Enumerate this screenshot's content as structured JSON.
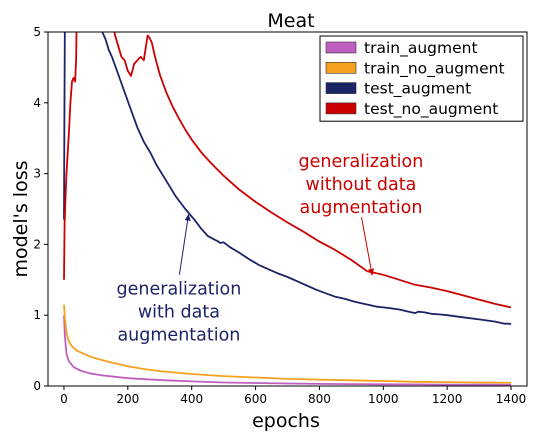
{
  "chart_data": {
    "type": "line",
    "title": "Meat",
    "xlabel": "epochs",
    "ylabel": "model's loss",
    "xlim": [
      -50,
      1450
    ],
    "ylim": [
      0,
      5
    ],
    "xticks": [
      0,
      200,
      400,
      600,
      800,
      1000,
      1200,
      1400
    ],
    "yticks": [
      0,
      1,
      2,
      3,
      4,
      5
    ],
    "grid": false,
    "legend_position": "top-right",
    "series": [
      {
        "name": "train_augment",
        "color": "#bf5fbf",
        "points": [
          [
            0,
            1.0
          ],
          [
            3,
            0.7
          ],
          [
            8,
            0.45
          ],
          [
            15,
            0.35
          ],
          [
            30,
            0.27
          ],
          [
            50,
            0.22
          ],
          [
            80,
            0.18
          ],
          [
            120,
            0.15
          ],
          [
            160,
            0.13
          ],
          [
            200,
            0.11
          ],
          [
            260,
            0.095
          ],
          [
            320,
            0.08
          ],
          [
            400,
            0.065
          ],
          [
            500,
            0.05
          ],
          [
            600,
            0.042
          ],
          [
            700,
            0.035
          ],
          [
            800,
            0.03
          ],
          [
            900,
            0.027
          ],
          [
            1000,
            0.024
          ],
          [
            1100,
            0.022
          ],
          [
            1200,
            0.02
          ],
          [
            1300,
            0.018
          ],
          [
            1400,
            0.017
          ]
        ]
      },
      {
        "name": "train_no_augment",
        "color": "#f5a01e",
        "points": [
          [
            0,
            1.15
          ],
          [
            3,
            0.95
          ],
          [
            8,
            0.75
          ],
          [
            15,
            0.63
          ],
          [
            25,
            0.56
          ],
          [
            40,
            0.5
          ],
          [
            60,
            0.46
          ],
          [
            80,
            0.42
          ],
          [
            100,
            0.39
          ],
          [
            150,
            0.33
          ],
          [
            200,
            0.28
          ],
          [
            250,
            0.24
          ],
          [
            300,
            0.21
          ],
          [
            400,
            0.17
          ],
          [
            500,
            0.14
          ],
          [
            600,
            0.12
          ],
          [
            700,
            0.1
          ],
          [
            800,
            0.09
          ],
          [
            900,
            0.08
          ],
          [
            1000,
            0.07
          ],
          [
            1100,
            0.06
          ],
          [
            1200,
            0.055
          ],
          [
            1300,
            0.05
          ],
          [
            1400,
            0.045
          ]
        ]
      },
      {
        "name": "test_augment",
        "color": "#1c2366",
        "points": [
          [
            0,
            2.35
          ],
          [
            1,
            3.5
          ],
          [
            3,
            5.2
          ],
          [
            100,
            5.2
          ],
          [
            110,
            5.05
          ],
          [
            120,
            5.0
          ],
          [
            130,
            4.9
          ],
          [
            140,
            4.75
          ],
          [
            150,
            4.65
          ],
          [
            170,
            4.4
          ],
          [
            190,
            4.15
          ],
          [
            210,
            3.9
          ],
          [
            230,
            3.65
          ],
          [
            250,
            3.45
          ],
          [
            270,
            3.3
          ],
          [
            290,
            3.12
          ],
          [
            320,
            2.9
          ],
          [
            350,
            2.68
          ],
          [
            380,
            2.5
          ],
          [
            410,
            2.34
          ],
          [
            430,
            2.22
          ],
          [
            450,
            2.12
          ],
          [
            470,
            2.07
          ],
          [
            480,
            2.05
          ],
          [
            490,
            2.02
          ],
          [
            500,
            2.03
          ],
          [
            520,
            1.96
          ],
          [
            550,
            1.88
          ],
          [
            580,
            1.79
          ],
          [
            610,
            1.71
          ],
          [
            640,
            1.65
          ],
          [
            670,
            1.59
          ],
          [
            700,
            1.54
          ],
          [
            730,
            1.48
          ],
          [
            760,
            1.42
          ],
          [
            790,
            1.36
          ],
          [
            820,
            1.31
          ],
          [
            850,
            1.26
          ],
          [
            880,
            1.23
          ],
          [
            910,
            1.19
          ],
          [
            940,
            1.16
          ],
          [
            960,
            1.14
          ],
          [
            980,
            1.12
          ],
          [
            1000,
            1.11
          ],
          [
            1020,
            1.1
          ],
          [
            1050,
            1.08
          ],
          [
            1080,
            1.05
          ],
          [
            1100,
            1.03
          ],
          [
            1110,
            1.05
          ],
          [
            1130,
            1.04
          ],
          [
            1150,
            1.02
          ],
          [
            1180,
            1.01
          ],
          [
            1200,
            1.0
          ],
          [
            1250,
            0.97
          ],
          [
            1300,
            0.94
          ],
          [
            1350,
            0.91
          ],
          [
            1380,
            0.88
          ],
          [
            1395,
            0.88
          ],
          [
            1400,
            0.87
          ]
        ]
      },
      {
        "name": "test_no_augment",
        "color": "#cc0000",
        "points": [
          [
            0,
            1.5
          ],
          [
            2,
            2.3
          ],
          [
            5,
            2.7
          ],
          [
            8,
            3.0
          ],
          [
            15,
            3.55
          ],
          [
            20,
            4.0
          ],
          [
            25,
            4.3
          ],
          [
            30,
            4.35
          ],
          [
            35,
            4.3
          ],
          [
            38,
            4.6
          ],
          [
            40,
            5.2
          ],
          [
            150,
            5.2
          ],
          [
            160,
            4.95
          ],
          [
            170,
            4.8
          ],
          [
            180,
            4.65
          ],
          [
            190,
            4.6
          ],
          [
            200,
            4.45
          ],
          [
            210,
            4.38
          ],
          [
            220,
            4.55
          ],
          [
            230,
            4.6
          ],
          [
            240,
            4.65
          ],
          [
            250,
            4.6
          ],
          [
            255,
            4.75
          ],
          [
            262,
            4.95
          ],
          [
            268,
            4.92
          ],
          [
            275,
            4.85
          ],
          [
            285,
            4.65
          ],
          [
            300,
            4.4
          ],
          [
            320,
            4.15
          ],
          [
            340,
            3.95
          ],
          [
            360,
            3.78
          ],
          [
            380,
            3.62
          ],
          [
            400,
            3.48
          ],
          [
            430,
            3.3
          ],
          [
            460,
            3.15
          ],
          [
            500,
            2.97
          ],
          [
            550,
            2.77
          ],
          [
            600,
            2.6
          ],
          [
            650,
            2.45
          ],
          [
            700,
            2.31
          ],
          [
            750,
            2.18
          ],
          [
            800,
            2.04
          ],
          [
            850,
            1.92
          ],
          [
            900,
            1.78
          ],
          [
            950,
            1.62
          ],
          [
            1000,
            1.57
          ],
          [
            1050,
            1.5
          ],
          [
            1100,
            1.43
          ],
          [
            1150,
            1.39
          ],
          [
            1200,
            1.34
          ],
          [
            1250,
            1.28
          ],
          [
            1300,
            1.22
          ],
          [
            1350,
            1.16
          ],
          [
            1400,
            1.11
          ]
        ]
      }
    ],
    "annotations": [
      {
        "name": "annotation-with-augmentation",
        "lines": [
          "generalization",
          "with data",
          "augmentation"
        ],
        "color": "#1c2366",
        "text_at": [
          360,
          1.05
        ],
        "arrow_to": [
          390,
          2.42
        ]
      },
      {
        "name": "annotation-without-augmentation",
        "lines": [
          "generalization",
          "without data",
          "augmentation"
        ],
        "color": "#cc0000",
        "text_at": [
          930,
          2.85
        ],
        "arrow_to": [
          965,
          1.57
        ]
      }
    ]
  }
}
